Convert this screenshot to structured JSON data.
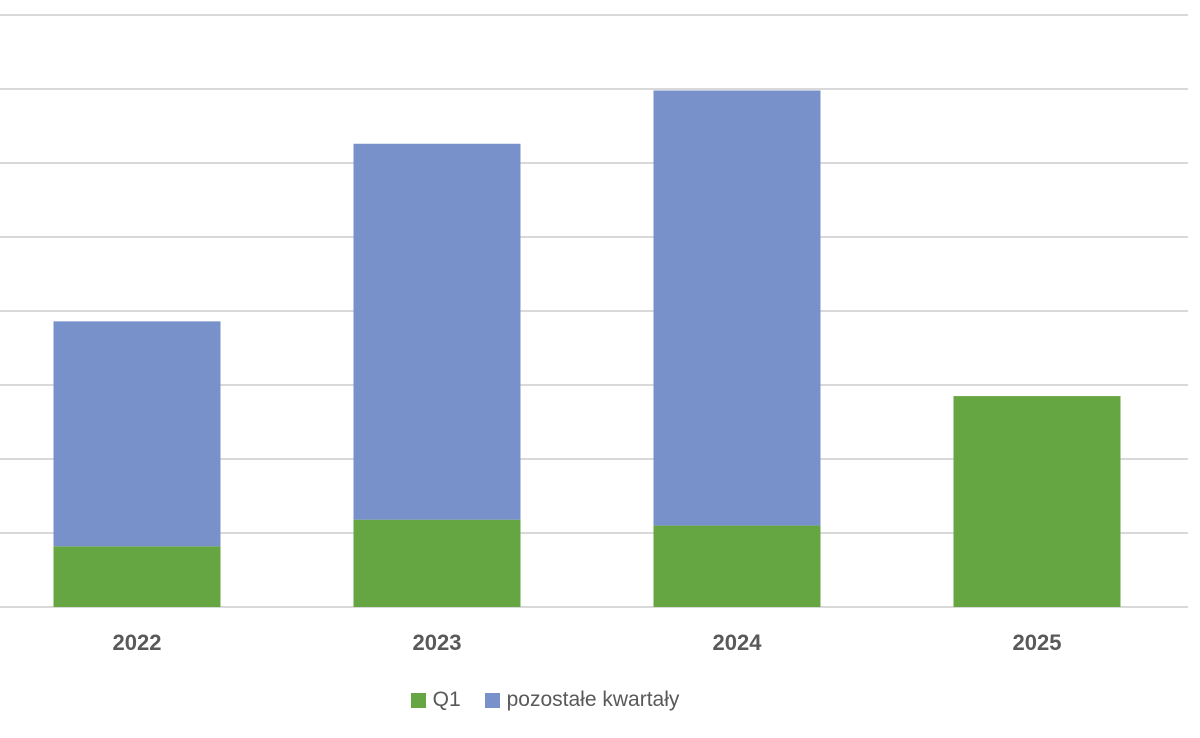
{
  "chart_data": {
    "type": "bar",
    "stacked": true,
    "categories": [
      "2022",
      "2023",
      "2024",
      "2025"
    ],
    "series": [
      {
        "name": "Q1",
        "color": "#65a642",
        "values": [
          0.82,
          1.18,
          1.1,
          2.85
        ]
      },
      {
        "name": "pozostałe kwartały",
        "color": "#7891ca",
        "values": [
          3.04,
          5.08,
          5.88,
          0
        ]
      }
    ],
    "ylim": [
      0,
      8
    ],
    "grid": true,
    "y_tick_labels_shown": false,
    "legend_position": "bottom",
    "colors": {
      "gridline": "#d9d9d9",
      "tick_text": "#595959"
    }
  }
}
